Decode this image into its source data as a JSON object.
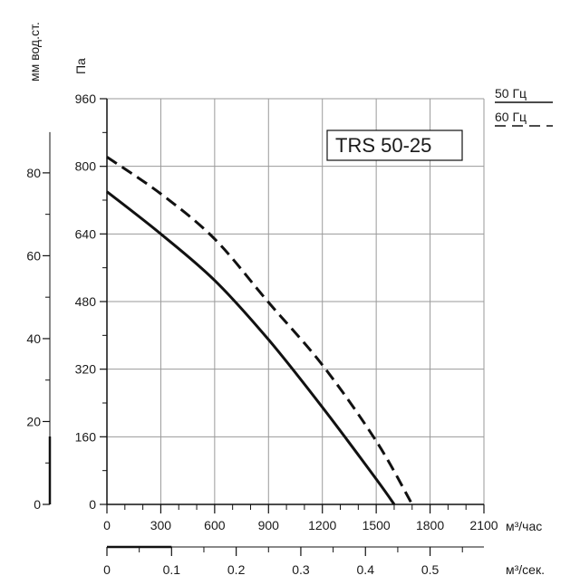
{
  "chart_data": {
    "type": "line",
    "model": "TRS 50-25",
    "x_unit_primary": "м³/час",
    "x_unit_secondary": "м³/сек.",
    "y_unit_primary": "Па",
    "y_unit_secondary": "мм вод.ст.",
    "xlim": [
      0,
      2100
    ],
    "ylim": [
      0,
      960
    ],
    "x_ticks": [
      0,
      300,
      600,
      900,
      1200,
      1500,
      1800,
      2100
    ],
    "x_tick_labels": [
      "0",
      "300",
      "600",
      "900",
      "1200",
      "1500",
      "1800",
      "2100"
    ],
    "y_ticks": [
      0,
      160,
      320,
      480,
      640,
      800,
      960
    ],
    "y_tick_labels": [
      "0",
      "160",
      "320",
      "480",
      "640",
      "800",
      "960"
    ],
    "secondary_x_ticks": [
      0,
      0.1,
      0.2,
      0.3,
      0.4,
      0.5
    ],
    "secondary_x_tick_labels": [
      "0",
      "0.1",
      "0.2",
      "0.3",
      "0.4",
      "0.5"
    ],
    "secondary_y_ticks": [
      0,
      20,
      40,
      60,
      80
    ],
    "secondary_y_tick_labels": [
      "0",
      "20",
      "40",
      "60",
      "80"
    ],
    "grid": true,
    "legend": "top-right",
    "series": [
      {
        "name": "50 Гц",
        "style": "solid",
        "color": "#111111",
        "x": [
          0,
          300,
          600,
          900,
          1200,
          1500,
          1600
        ],
        "y": [
          740,
          640,
          530,
          390,
          230,
          60,
          0
        ]
      },
      {
        "name": "60 Гц",
        "style": "dashed",
        "color": "#111111",
        "x": [
          0,
          300,
          600,
          900,
          1200,
          1500,
          1700
        ],
        "y": [
          822,
          735,
          628,
          478,
          330,
          150,
          0
        ]
      }
    ]
  }
}
